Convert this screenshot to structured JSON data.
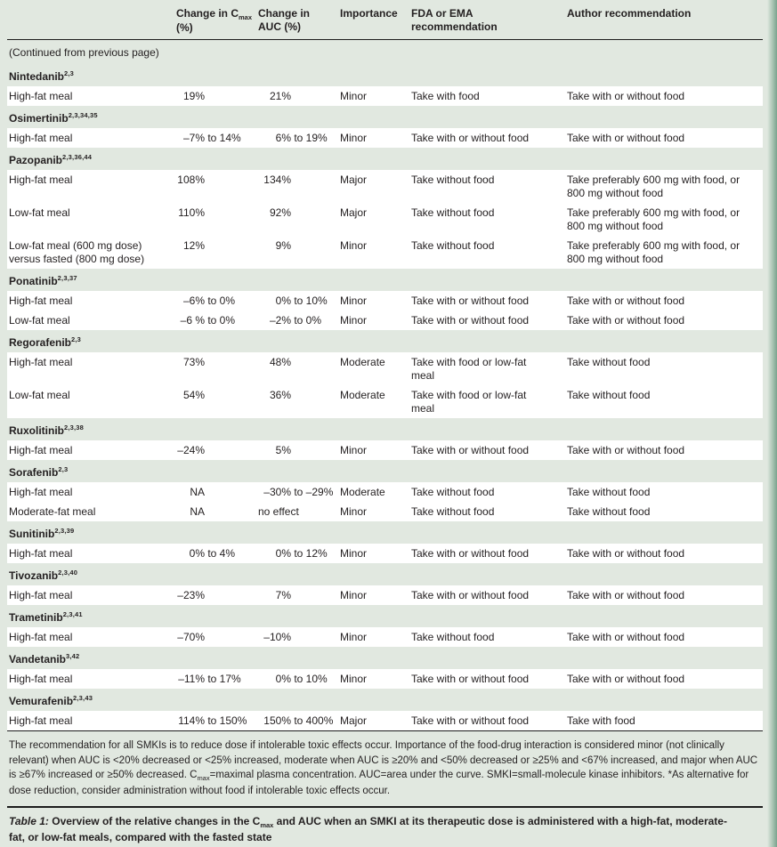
{
  "page": {
    "bg_color": "#e1e8e0",
    "row_color": "#ffffff",
    "rule_color": "#1c1c1c",
    "edge_strip_color": "#7aa28d"
  },
  "table": {
    "continued_note": "(Continued from previous page)",
    "columns": {
      "cmax_prefix": "Change in C",
      "cmax_sub": "max",
      "cmax_unit": "(%)",
      "auc_line1": "Change in",
      "auc_line2": "AUC (%)",
      "importance": "Importance",
      "fda_line1": "FDA or EMA",
      "fda_line2": "recommendation",
      "author": "Author recommendation"
    },
    "sections": [
      {
        "name": "Nintedanib",
        "ref": "2,3",
        "rows": [
          {
            "label": "High-fat meal",
            "cmax": "19%",
            "auc": "21%",
            "importance": "Minor",
            "fda": "Take with food",
            "author": "Take with or without food"
          }
        ]
      },
      {
        "name": "Osimertinib",
        "ref": "2,3,34,35",
        "rows": [
          {
            "label": "High-fat meal",
            "cmax": "–7% to 14%",
            "auc": "6% to 19%",
            "importance": "Minor",
            "fda": "Take with or without food",
            "author": "Take with or without food"
          }
        ]
      },
      {
        "name": "Pazopanib",
        "ref": "2,3,36,44",
        "rows": [
          {
            "label": "High-fat meal",
            "cmax": "108%",
            "auc": "134%",
            "importance": "Major",
            "fda": "Take without food",
            "author": "Take preferably 600 mg with food, or 800 mg without food"
          },
          {
            "label": "Low-fat meal",
            "cmax": "110%",
            "auc": "92%",
            "importance": "Major",
            "fda": "Take without food",
            "author": "Take preferably 600 mg with food, or 800 mg without food"
          },
          {
            "label": "Low-fat meal (600 mg dose) versus fasted (800 mg dose)",
            "cmax": "12%",
            "auc": "9%",
            "importance": "Minor",
            "fda": "Take without food",
            "author": "Take preferably 600 mg with food, or 800 mg without food"
          }
        ]
      },
      {
        "name": "Ponatinib",
        "ref": "2,3,37",
        "rows": [
          {
            "label": "High-fat meal",
            "cmax": "–6% to 0%",
            "auc": "0% to 10%",
            "importance": "Minor",
            "fda": "Take with or without food",
            "author": "Take with or without food"
          },
          {
            "label": "Low-fat meal",
            "cmax": "–6 % to 0%",
            "auc": "–2% to 0%",
            "importance": "Minor",
            "fda": "Take with or without food",
            "author": "Take with or without food"
          }
        ]
      },
      {
        "name": "Regorafenib",
        "ref": "2,3",
        "rows": [
          {
            "label": "High-fat meal",
            "cmax": "73%",
            "auc": "48%",
            "importance": "Moderate",
            "fda": "Take with food or low-fat meal",
            "author": "Take without food"
          },
          {
            "label": "Low-fat meal",
            "cmax": "54%",
            "auc": "36%",
            "importance": "Moderate",
            "fda": "Take with food or low-fat meal",
            "author": "Take without food"
          }
        ]
      },
      {
        "name": "Ruxolitinib",
        "ref": "2,3,38",
        "rows": [
          {
            "label": "High-fat meal",
            "cmax": "–24%",
            "auc": "5%",
            "importance": "Minor",
            "fda": "Take with or without food",
            "author": "Take with or without food"
          }
        ]
      },
      {
        "name": "Sorafenib",
        "ref": "2,3",
        "rows": [
          {
            "label": "High-fat meal",
            "cmax": "NA",
            "auc": "–30% to –29%",
            "importance": "Moderate",
            "fda": "Take without food",
            "author": "Take without food"
          },
          {
            "label": "Moderate-fat meal",
            "cmax": "NA",
            "auc": "no effect",
            "importance": "Minor",
            "fda": "Take without food",
            "author": "Take without food"
          }
        ]
      },
      {
        "name": "Sunitinib",
        "ref": "2,3,39",
        "rows": [
          {
            "label": "High-fat meal",
            "cmax": "0% to 4%",
            "auc": "0% to 12%",
            "importance": "Minor",
            "fda": "Take with or without food",
            "author": "Take with or without food"
          }
        ]
      },
      {
        "name": "Tivozanib",
        "ref": "2,3,40",
        "rows": [
          {
            "label": "High-fat meal",
            "cmax": "–23%",
            "auc": "7%",
            "importance": "Minor",
            "fda": "Take with or without food",
            "author": "Take with or without food"
          }
        ]
      },
      {
        "name": "Trametinib",
        "ref": "2,3,41",
        "rows": [
          {
            "label": "High-fat meal",
            "cmax": "–70%",
            "auc": "–10%",
            "importance": "Minor",
            "fda": "Take without food",
            "author": "Take with or without food"
          }
        ]
      },
      {
        "name": "Vandetanib",
        "ref": "3,42",
        "rows": [
          {
            "label": "High-fat meal",
            "cmax": "–11% to 17%",
            "auc": "0% to 10%",
            "importance": "Minor",
            "fda": "Take with or without food",
            "author": "Take with or without food"
          }
        ]
      },
      {
        "name": "Vemurafenib",
        "ref": "2,3,43",
        "rows": [
          {
            "label": "High-fat meal",
            "cmax": "114% to 150%",
            "auc": "150% to 400%",
            "importance": "Major",
            "fda": "Take with or without food",
            "author": "Take with food"
          }
        ]
      }
    ]
  },
  "footnote": {
    "part1": "The recommendation for all SMKIs is to reduce dose if intolerable toxic effects occur. Importance of the food-drug interaction is considered minor (not clinically relevant) when AUC is <20% decreased or <25% increased, moderate when AUC is ≥20% and <50% decreased or ≥25% and <67% increased, and major when AUC is ≥67% increased or ≥50% decreased. C",
    "sub": "max",
    "part2": "=maximal plasma concentration. AUC=area under the curve. SMKI=small-molecule kinase inhibitors. *As alternative for dose reduction, consider administration without food if intolerable toxic effects occur."
  },
  "caption": {
    "label": "Table 1:",
    "part1": " Overview of the relative changes in the C",
    "sub": "max",
    "part2": " and AUC when an SMKI at its therapeutic dose is administered with a high-fat, moderate-fat, or low-fat meals, compared with the fasted state"
  }
}
